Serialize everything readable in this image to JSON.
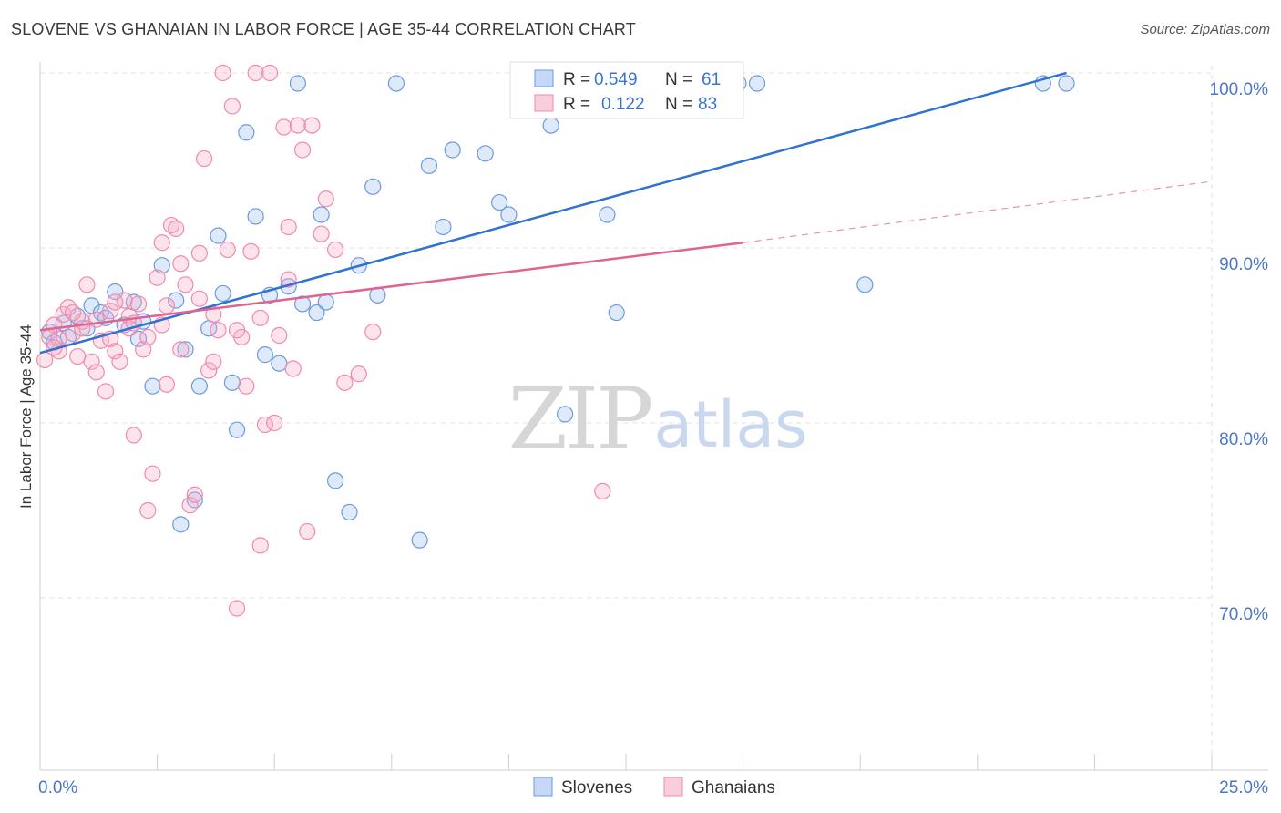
{
  "title": "SLOVENE VS GHANAIAN IN LABOR FORCE | AGE 35-44 CORRELATION CHART",
  "source": "Source: ZipAtlas.com",
  "watermark": {
    "zip": "ZIP",
    "atlas": "atlas"
  },
  "legend": {
    "rows": [
      {
        "r_label": "R = ",
        "r_value": "0.549",
        "n_label": "N = ",
        "n_value": "61",
        "color": "#6a9ae0"
      },
      {
        "r_label": "R = ",
        "r_value": "0.122",
        "n_label": "N = ",
        "n_value": "83",
        "color": "#f08aad"
      }
    ]
  },
  "bottom_legend": [
    {
      "label": "Slovenes",
      "color": "#6a9ae0"
    },
    {
      "label": "Ghanaians",
      "color": "#f08aad"
    }
  ],
  "chart_data": {
    "type": "scatter",
    "title": "SLOVENE VS GHANAIAN IN LABOR FORCE | AGE 35-44 CORRELATION CHART",
    "xlabel": "",
    "ylabel": "In Labor Force | Age 35-44",
    "xlim": [
      0,
      25
    ],
    "ylim": [
      60,
      100
    ],
    "x_tick_labels": [
      {
        "value": 0,
        "label": "0.0%"
      },
      {
        "value": 25,
        "label": "25.0%"
      }
    ],
    "y_tick_labels": [
      {
        "value": 100,
        "label": "100.0%"
      },
      {
        "value": 90,
        "label": "90.0%"
      },
      {
        "value": 80,
        "label": "80.0%"
      },
      {
        "value": 70,
        "label": "70.0%"
      }
    ],
    "grid": true,
    "legend_position": "top-center",
    "series": [
      {
        "name": "Slovenes",
        "color": "#6a9ae0",
        "line_color": "#2f72cf",
        "trend": {
          "x": [
            0.0,
            21.9
          ],
          "y": [
            84.0,
            100.0
          ]
        },
        "points": [
          [
            0.2,
            85.2
          ],
          [
            0.3,
            84.6
          ],
          [
            0.5,
            85.7
          ],
          [
            0.8,
            86.1
          ],
          [
            1.0,
            85.4
          ],
          [
            1.1,
            86.7
          ],
          [
            1.3,
            86.3
          ],
          [
            1.6,
            87.5
          ],
          [
            1.8,
            85.6
          ],
          [
            2.0,
            86.9
          ],
          [
            2.1,
            84.8
          ],
          [
            2.4,
            82.1
          ],
          [
            2.6,
            89.0
          ],
          [
            2.9,
            87.0
          ],
          [
            3.1,
            84.2
          ],
          [
            3.4,
            82.1
          ],
          [
            3.6,
            85.4
          ],
          [
            3.8,
            90.7
          ],
          [
            3.9,
            87.4
          ],
          [
            4.1,
            82.3
          ],
          [
            4.2,
            79.6
          ],
          [
            4.4,
            96.6
          ],
          [
            4.6,
            91.8
          ],
          [
            4.8,
            83.9
          ],
          [
            4.9,
            87.3
          ],
          [
            5.1,
            83.4
          ],
          [
            5.3,
            87.8
          ],
          [
            5.5,
            99.4
          ],
          [
            5.6,
            86.8
          ],
          [
            5.9,
            86.3
          ],
          [
            6.0,
            91.9
          ],
          [
            6.1,
            86.9
          ],
          [
            6.3,
            76.7
          ],
          [
            6.6,
            74.9
          ],
          [
            6.8,
            89.0
          ],
          [
            7.1,
            93.5
          ],
          [
            7.2,
            87.3
          ],
          [
            7.6,
            99.4
          ],
          [
            8.1,
            73.3
          ],
          [
            8.3,
            94.7
          ],
          [
            8.6,
            91.2
          ],
          [
            8.8,
            95.6
          ],
          [
            9.5,
            95.4
          ],
          [
            9.8,
            92.6
          ],
          [
            10.0,
            91.9
          ],
          [
            10.9,
            97.0
          ],
          [
            11.2,
            80.5
          ],
          [
            12.1,
            91.9
          ],
          [
            12.3,
            86.3
          ],
          [
            12.7,
            99.4
          ],
          [
            13.8,
            99.4
          ],
          [
            14.9,
            99.4
          ],
          [
            15.3,
            99.4
          ],
          [
            17.6,
            87.9
          ],
          [
            21.4,
            99.4
          ],
          [
            21.9,
            99.4
          ],
          [
            3.3,
            75.6
          ],
          [
            3.0,
            74.2
          ],
          [
            1.4,
            86.0
          ],
          [
            0.6,
            84.9
          ],
          [
            2.2,
            85.8
          ]
        ]
      },
      {
        "name": "Ghanaians",
        "color": "#f08aad",
        "line_color": "#e0648f",
        "trend": {
          "x": [
            0.0,
            15.0
          ],
          "y": [
            85.3,
            90.3
          ]
        },
        "trend_extension": {
          "x": [
            15.0,
            25.0
          ],
          "y": [
            90.3,
            93.8
          ]
        },
        "points": [
          [
            0.1,
            83.6
          ],
          [
            0.2,
            84.9
          ],
          [
            0.3,
            85.6
          ],
          [
            0.4,
            84.1
          ],
          [
            0.5,
            86.2
          ],
          [
            0.6,
            86.6
          ],
          [
            0.7,
            85.1
          ],
          [
            0.8,
            83.8
          ],
          [
            0.9,
            85.8
          ],
          [
            1.0,
            87.9
          ],
          [
            1.1,
            83.5
          ],
          [
            1.2,
            82.9
          ],
          [
            1.3,
            84.7
          ],
          [
            1.4,
            81.8
          ],
          [
            1.5,
            86.4
          ],
          [
            1.6,
            84.1
          ],
          [
            1.7,
            83.5
          ],
          [
            1.8,
            87.0
          ],
          [
            1.9,
            85.4
          ],
          [
            2.0,
            79.3
          ],
          [
            2.1,
            86.8
          ],
          [
            2.2,
            84.2
          ],
          [
            2.3,
            75.0
          ],
          [
            2.4,
            77.1
          ],
          [
            2.5,
            88.3
          ],
          [
            2.6,
            90.3
          ],
          [
            2.7,
            86.7
          ],
          [
            2.8,
            91.3
          ],
          [
            2.9,
            91.1
          ],
          [
            3.0,
            89.1
          ],
          [
            3.1,
            87.9
          ],
          [
            3.2,
            75.3
          ],
          [
            3.3,
            75.9
          ],
          [
            3.4,
            89.7
          ],
          [
            3.5,
            95.1
          ],
          [
            3.6,
            83.0
          ],
          [
            3.7,
            86.2
          ],
          [
            3.8,
            85.3
          ],
          [
            3.9,
            100.0
          ],
          [
            4.0,
            89.9
          ],
          [
            4.1,
            98.1
          ],
          [
            4.2,
            69.4
          ],
          [
            4.3,
            84.9
          ],
          [
            4.4,
            82.1
          ],
          [
            4.5,
            89.8
          ],
          [
            4.6,
            100.0
          ],
          [
            4.7,
            73.0
          ],
          [
            4.8,
            79.9
          ],
          [
            4.9,
            100.0
          ],
          [
            5.0,
            80.0
          ],
          [
            5.1,
            85.0
          ],
          [
            5.2,
            96.9
          ],
          [
            5.3,
            91.2
          ],
          [
            5.4,
            83.1
          ],
          [
            5.5,
            97.0
          ],
          [
            5.6,
            95.6
          ],
          [
            5.7,
            73.8
          ],
          [
            5.8,
            97.0
          ],
          [
            6.0,
            90.8
          ],
          [
            6.1,
            92.8
          ],
          [
            6.3,
            89.9
          ],
          [
            6.5,
            82.3
          ],
          [
            6.8,
            82.8
          ],
          [
            7.1,
            85.2
          ],
          [
            2.3,
            84.9
          ],
          [
            1.9,
            86.1
          ],
          [
            0.9,
            85.4
          ],
          [
            0.4,
            84.8
          ],
          [
            1.5,
            84.8
          ],
          [
            2.6,
            85.6
          ],
          [
            3.0,
            84.2
          ],
          [
            4.2,
            85.3
          ],
          [
            5.3,
            88.2
          ],
          [
            1.2,
            85.9
          ],
          [
            0.7,
            86.3
          ],
          [
            2.0,
            85.7
          ],
          [
            3.4,
            87.1
          ],
          [
            4.7,
            86.0
          ],
          [
            12.0,
            76.1
          ],
          [
            2.7,
            82.2
          ],
          [
            3.7,
            83.5
          ],
          [
            1.6,
            86.9
          ],
          [
            0.3,
            84.3
          ]
        ]
      }
    ]
  }
}
